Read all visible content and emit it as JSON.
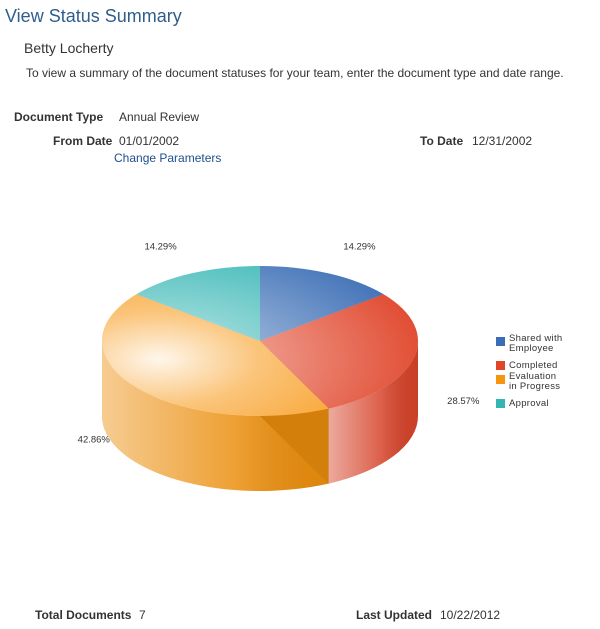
{
  "page": {
    "title": "View Status Summary",
    "person_name": "Betty Locherty",
    "instructions": "To view a summary of the document statuses for your team, enter the document type and date range."
  },
  "params": {
    "document_type_label": "Document Type",
    "document_type_value": "Annual Review",
    "from_date_label": "From Date",
    "from_date_value": "01/01/2002",
    "to_date_label": "To Date",
    "to_date_value": "12/31/2002",
    "change_parameters_link": "Change Parameters"
  },
  "chart_data": {
    "type": "pie",
    "title": "",
    "series": [
      {
        "name": "Shared with Employee",
        "value": 14.29,
        "label": "14.29%",
        "color": "#3a6db5",
        "legend_lines": [
          "Shared with",
          "Employee"
        ]
      },
      {
        "name": "Completed",
        "value": 28.57,
        "label": "28.57%",
        "color": "#e0452a",
        "legend_lines": [
          "Completed"
        ]
      },
      {
        "name": "Evaluation in Progress",
        "value": 42.86,
        "label": "42.86%",
        "color": "#f7950e",
        "legend_lines": [
          "Evaluation",
          "in Progress"
        ]
      },
      {
        "name": "Approval",
        "value": 14.29,
        "label": "14.29%",
        "color": "#32b5b3",
        "legend_lines": [
          "Approval"
        ]
      }
    ],
    "legend_position": "right"
  },
  "footer": {
    "total_documents_label": "Total Documents",
    "total_documents_value": "7",
    "last_updated_label": "Last Updated",
    "last_updated_value": "10/22/2012"
  }
}
